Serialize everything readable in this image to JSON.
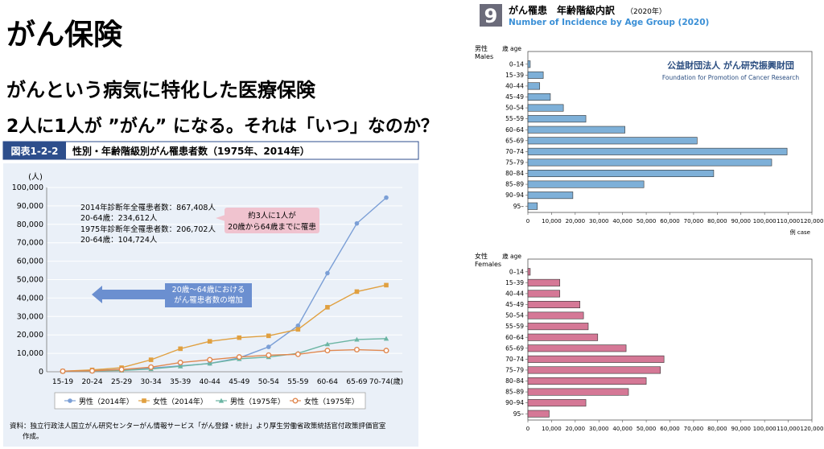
{
  "page": {
    "title": "がん保険",
    "subtitle": "がんという病気に特化した医療保険",
    "question": "2人に1人が ”がん” になる。それは「いつ」なのか？"
  },
  "figure_left": {
    "badge": "図表1-2-2",
    "heading": "性別・年齢階級別がん罹患者数（1975年、2014年）",
    "note_2014_total": "2014年診断年全罹患者数：867,408人",
    "note_2014_range": "20-64歳：234,612人",
    "note_1975_total": "1975年診断年全罹患者数：206,702人",
    "note_1975_range": "20-64歳：104,724人",
    "callout_line1": "約3人に1人が",
    "callout_line2": "20歳から64歳までに罹患",
    "arrow_line1": "20歳～64歳における",
    "arrow_line2": "がん罹患者数の増加",
    "source_line1": "資料：独立行政法人国立がん研究センターがん情報サービス「がん登録・統計」より厚生労働省政策統括官付政策評価官室",
    "source_line2": "作成。"
  },
  "figure_right": {
    "badge_number": "9",
    "title_jp": "がん罹患　年齢階級内訳",
    "title_year": "（2020年）",
    "title_en": "Number of Incidence by Age Group (2020)",
    "male_label_jp": "男性",
    "male_label_en": "Males",
    "female_label_jp": "女性",
    "female_label_en": "Females",
    "age_header": "歳 age",
    "org_jp": "公益財団法人 がん研究振興財団",
    "org_en": "Foundation for Promotion of Cancer Research",
    "unit": "例 case"
  },
  "chart_data": [
    {
      "type": "line",
      "y_unit": "(人)",
      "categories": [
        "15-19",
        "20-24",
        "25-29",
        "30-34",
        "35-39",
        "40-44",
        "45-49",
        "50-54",
        "55-59",
        "60-64",
        "65-69",
        "70-74(歳)"
      ],
      "ylim": [
        0,
        100000
      ],
      "yticks": [
        "0",
        "10,000",
        "20,000",
        "30,000",
        "40,000",
        "50,000",
        "60,000",
        "70,000",
        "80,000",
        "90,000",
        "100,000"
      ],
      "legend_position": "bottom",
      "series": [
        {
          "name": "男性（2014年）",
          "color": "#7b9fd6",
          "marker": "circle",
          "values": [
            300,
            700,
            1200,
            2000,
            3200,
            4500,
            7500,
            13500,
            25000,
            53500,
            80500,
            94500
          ]
        },
        {
          "name": "女性（2014年）",
          "color": "#e0a040",
          "marker": "square",
          "values": [
            300,
            1000,
            2200,
            6500,
            12500,
            16500,
            18500,
            19500,
            23000,
            35000,
            43500,
            47000
          ]
        },
        {
          "name": "男性（1975年）",
          "color": "#6bb5a3",
          "marker": "triangle",
          "values": [
            300,
            400,
            700,
            1500,
            3000,
            4500,
            7000,
            8000,
            10000,
            15000,
            17500,
            18000
          ]
        },
        {
          "name": "女性（1975年）",
          "color": "#e08850",
          "marker": "open-circle",
          "values": [
            300,
            500,
            1200,
            2500,
            5000,
            6500,
            8000,
            9000,
            9500,
            11500,
            12000,
            11500
          ]
        }
      ]
    },
    {
      "type": "bar",
      "orientation": "horizontal",
      "name": "男性",
      "color": "#7eb0d8",
      "categories": [
        "0–14",
        "15–39",
        "40–44",
        "45–49",
        "50–54",
        "55–59",
        "60–64",
        "65–69",
        "70–74",
        "75–79",
        "80–84",
        "85–89",
        "90–94",
        "95–"
      ],
      "values": [
        1000,
        6500,
        5000,
        9500,
        15000,
        24500,
        41000,
        71500,
        109500,
        103000,
        78500,
        49000,
        19000,
        4000
      ],
      "xlim": [
        0,
        120000
      ],
      "xticks": [
        "0",
        "10,000",
        "20,000",
        "30,000",
        "40,000",
        "50,000",
        "60,000",
        "70,000",
        "80,000",
        "90,000",
        "100,000",
        "110,000",
        "120,000"
      ]
    },
    {
      "type": "bar",
      "orientation": "horizontal",
      "name": "女性",
      "color": "#d57896",
      "categories": [
        "0–14",
        "15–39",
        "40–44",
        "45–49",
        "50–54",
        "55–59",
        "60–64",
        "65–69",
        "70–74",
        "75–79",
        "80–84",
        "85–89",
        "90–94",
        "95–"
      ],
      "values": [
        1000,
        13500,
        13500,
        22000,
        23500,
        25500,
        29500,
        41500,
        57500,
        56000,
        50000,
        42500,
        24500,
        9000
      ],
      "xlim": [
        0,
        120000
      ],
      "xticks": [
        "0",
        "10,000",
        "20,000",
        "30,000",
        "40,000",
        "50,000",
        "60,000",
        "70,000",
        "80,000",
        "90,000",
        "100,000",
        "110,000",
        "120,000"
      ]
    }
  ]
}
